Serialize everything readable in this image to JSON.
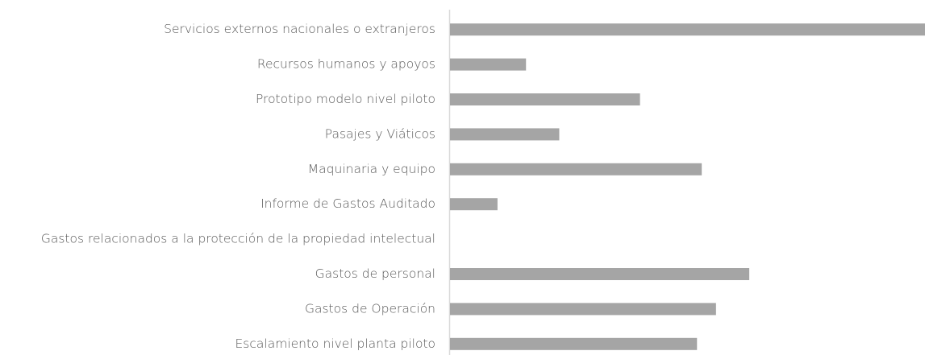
{
  "chart_data": {
    "type": "barh",
    "categories": [
      "Servicios externos nacionales o extranjeros",
      "Recursos humanos y apoyos",
      "Prototipo modelo nivel piloto",
      "Pasajes y Viáticos",
      "Maquinaria y equipo",
      "Informe de Gastos Auditado",
      "Gastos relacionados a la protección de la propiedad intelectual",
      "Gastos de personal",
      "Gastos de Operación",
      "Escalamiento nivel planta piloto"
    ],
    "values": [
      100,
      16,
      40,
      23,
      53,
      10,
      0,
      63,
      56,
      52
    ],
    "color": "#a5a5a5",
    "xlim": [
      0,
      100
    ]
  }
}
